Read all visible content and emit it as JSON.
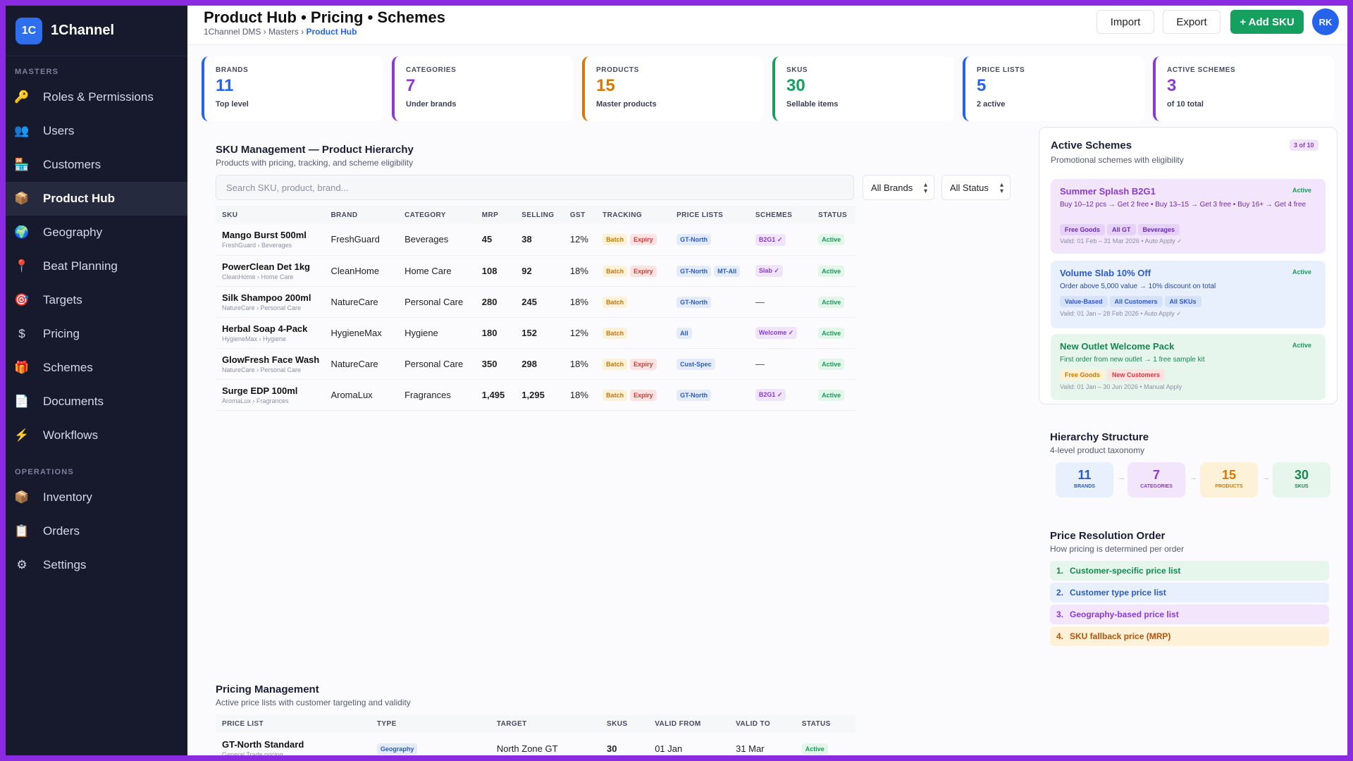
{
  "app": {
    "logo": "1C",
    "name": "1Channel"
  },
  "sidebar": {
    "masters_heading": "MASTERS",
    "masters": [
      {
        "label": "Roles & Permissions",
        "icon": "🔑"
      },
      {
        "label": "Users",
        "icon": "👥"
      },
      {
        "label": "Customers",
        "icon": "🏪"
      },
      {
        "label": "Product Hub",
        "icon": "📦"
      },
      {
        "label": "Geography",
        "icon": "🌍"
      },
      {
        "label": "Beat Planning",
        "icon": "📍"
      },
      {
        "label": "Targets",
        "icon": "🎯"
      },
      {
        "label": "Pricing",
        "icon": "$"
      },
      {
        "label": "Schemes",
        "icon": "🎁"
      },
      {
        "label": "Documents",
        "icon": "📄"
      },
      {
        "label": "Workflows",
        "icon": "⚡"
      }
    ],
    "operations_heading": "OPERATIONS",
    "operations": [
      {
        "label": "Inventory",
        "icon": "📦"
      },
      {
        "label": "Orders",
        "icon": "📋"
      },
      {
        "label": "Settings",
        "icon": "⚙"
      }
    ]
  },
  "header": {
    "title": "Product Hub • Pricing • Schemes",
    "crumb_1": "1Channel DMS",
    "crumb_2": "Masters",
    "crumb_current": "Product Hub",
    "sep": "›",
    "import_label": "Import",
    "export_label": "Export",
    "add_label": "+ Add SKU",
    "avatar": "RK"
  },
  "stats": [
    {
      "label": "BRANDS",
      "value": "11",
      "sub": "Top level",
      "color": "#2563eb"
    },
    {
      "label": "CATEGORIES",
      "value": "7",
      "sub": "Under brands",
      "color": "#8a3bd1"
    },
    {
      "label": "PRODUCTS",
      "value": "15",
      "sub": "Master products",
      "color": "#d97706"
    },
    {
      "label": "SKUS",
      "value": "30",
      "sub": "Sellable items",
      "color": "#15a060"
    },
    {
      "label": "PRICE LISTS",
      "value": "5",
      "sub": "2 active",
      "color": "#2563eb"
    },
    {
      "label": "ACTIVE SCHEMES",
      "value": "3",
      "sub": "of 10 total",
      "color": "#8a3bd1"
    }
  ],
  "sku": {
    "title": "SKU Management — Product Hierarchy",
    "subtitle": "Products with pricing, tracking, and scheme eligibility",
    "search_placeholder": "Search SKU, product, brand...",
    "filter_brands": "All Brands",
    "filter_status": "All Status",
    "columns": [
      "SKU",
      "BRAND",
      "CATEGORY",
      "MRP",
      "SELLING",
      "GST",
      "TRACKING",
      "PRICE LISTS",
      "SCHEMES",
      "STATUS"
    ],
    "rows": [
      {
        "name": "Mango Burst 500ml",
        "path": "FreshGuard › Beverages",
        "brand": "FreshGuard",
        "category": "Beverages",
        "mrp": "45",
        "selling": "38",
        "gst": "12%",
        "tracking": [
          "Batch",
          "Expiry"
        ],
        "pricelists": [
          "GT-North"
        ],
        "scheme": "B2G1 ✓",
        "status": "Active"
      },
      {
        "name": "PowerClean Det 1kg",
        "path": "CleanHome › Home Care",
        "brand": "CleanHome",
        "category": "Home Care",
        "mrp": "108",
        "selling": "92",
        "gst": "18%",
        "tracking": [
          "Batch",
          "Expiry"
        ],
        "pricelists": [
          "GT-North",
          "MT-All"
        ],
        "scheme": "Slab ✓",
        "status": "Active"
      },
      {
        "name": "Silk Shampoo 200ml",
        "path": "NatureCare › Personal Care",
        "brand": "NatureCare",
        "category": "Personal Care",
        "mrp": "280",
        "selling": "245",
        "gst": "18%",
        "tracking": [
          "Batch"
        ],
        "pricelists": [
          "GT-North"
        ],
        "scheme": "—",
        "status": "Active"
      },
      {
        "name": "Herbal Soap 4-Pack",
        "path": "HygieneMax › Hygiene",
        "brand": "HygieneMax",
        "category": "Hygiene",
        "mrp": "180",
        "selling": "152",
        "gst": "12%",
        "tracking": [
          "Batch"
        ],
        "pricelists": [
          "All"
        ],
        "scheme": "Welcome ✓",
        "status": "Active"
      },
      {
        "name": "GlowFresh Face Wash",
        "path": "NatureCare › Personal Care",
        "brand": "NatureCare",
        "category": "Personal Care",
        "mrp": "350",
        "selling": "298",
        "gst": "18%",
        "tracking": [
          "Batch",
          "Expiry"
        ],
        "pricelists": [
          "Cust-Spec"
        ],
        "scheme": "—",
        "status": "Active"
      },
      {
        "name": "Surge EDP 100ml",
        "path": "AromaLux › Fragrances",
        "brand": "AromaLux",
        "category": "Fragrances",
        "mrp": "1,495",
        "selling": "1,295",
        "gst": "18%",
        "tracking": [
          "Batch",
          "Expiry"
        ],
        "pricelists": [
          "GT-North"
        ],
        "scheme": "B2G1 ✓",
        "status": "Active"
      }
    ]
  },
  "active_schemes": {
    "title": "Active Schemes",
    "subtitle": "Promotional schemes with eligibility",
    "count": "3 of 10",
    "items": [
      {
        "title": "Summer Splash B2G1",
        "status": "Active",
        "desc": "Buy 10–12 pcs → Get 2 free • Buy 13–15 → Get 3 free • Buy 16+ → Get 4 free",
        "tags": [
          "Free Goods",
          "All GT",
          "Beverages"
        ],
        "validity": "Valid: 01 Feb – 31 Mar 2026 • Auto Apply ✓"
      },
      {
        "title": "Volume Slab 10% Off",
        "status": "Active",
        "desc": "Order above 5,000 value → 10% discount on total",
        "tags": [
          "Value-Based",
          "All Customers",
          "All SKUs"
        ],
        "validity": "Valid: 01 Jan – 28 Feb 2026 • Auto Apply ✓"
      },
      {
        "title": "New Outlet Welcome Pack",
        "status": "Active",
        "desc": "First order from new outlet → 1 free sample kit",
        "tags": [
          "Free Goods",
          "New Customers"
        ],
        "validity": "Valid: 01 Jan – 30 Jun 2026 • Manual Apply"
      }
    ]
  },
  "hierarchy": {
    "title": "Hierarchy Structure",
    "subtitle": "4-level product taxonomy",
    "arrow": "→",
    "levels": [
      {
        "value": "11",
        "label": "BRANDS"
      },
      {
        "value": "7",
        "label": "CATEGORIES"
      },
      {
        "value": "15",
        "label": "PRODUCTS"
      },
      {
        "value": "30",
        "label": "SKUS"
      }
    ]
  },
  "price_resolution": {
    "title": "Price Resolution Order",
    "subtitle": "How pricing is determined per order",
    "items": [
      {
        "no": "1.",
        "label": "Customer-specific price list"
      },
      {
        "no": "2.",
        "label": "Customer type price list"
      },
      {
        "no": "3.",
        "label": "Geography-based price list"
      },
      {
        "no": "4.",
        "label": "SKU fallback price (MRP)"
      }
    ]
  },
  "pricing": {
    "title": "Pricing Management",
    "subtitle": "Active price lists with customer targeting and validity",
    "columns": [
      "PRICE LIST",
      "TYPE",
      "TARGET",
      "SKUS",
      "VALID FROM",
      "VALID TO",
      "STATUS"
    ],
    "rows": [
      {
        "name": "GT-North Standard",
        "sub": "General Trade pricing",
        "type": "Geography",
        "target": "North Zone GT",
        "skus": "30",
        "from": "01 Jan",
        "to": "31 Mar",
        "status": "Active"
      }
    ]
  }
}
